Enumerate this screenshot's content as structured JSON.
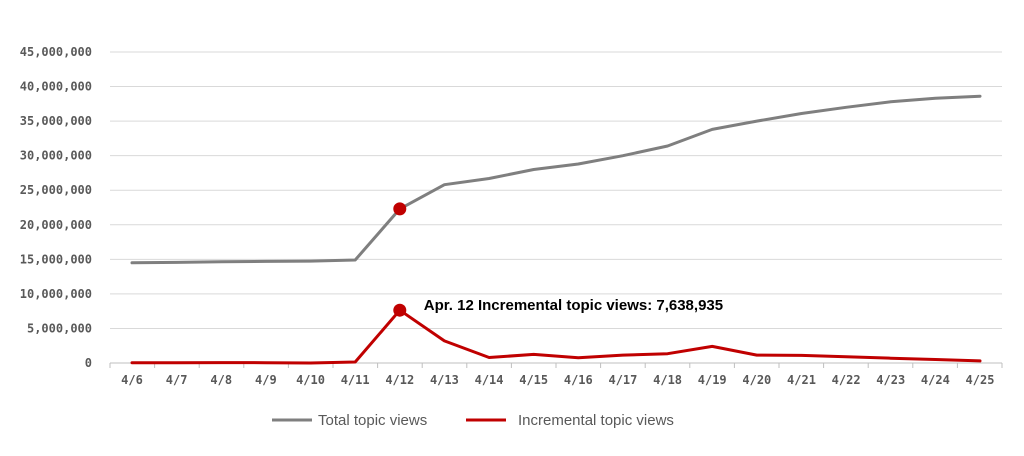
{
  "chart_data": {
    "type": "line",
    "categories": [
      "4/6",
      "4/7",
      "4/8",
      "4/9",
      "4/10",
      "4/11",
      "4/12",
      "4/13",
      "4/14",
      "4/15",
      "4/16",
      "4/17",
      "4/18",
      "4/19",
      "4/20",
      "4/21",
      "4/22",
      "4/23",
      "4/24",
      "4/25"
    ],
    "y_tick_labels": [
      "0",
      "5,000,000",
      "10,000,000",
      "15,000,000",
      "20,000,000",
      "25,000,000",
      "30,000,000",
      "35,000,000",
      "40,000,000",
      "45,000,000"
    ],
    "y_tick_values": [
      0,
      5000000,
      10000000,
      15000000,
      20000000,
      25000000,
      30000000,
      35000000,
      40000000,
      45000000
    ],
    "ylim": [
      0,
      45000000
    ],
    "grid": true,
    "legend_position": "bottom",
    "series": [
      {
        "name": "Total topic views",
        "color": "#7f7f7f",
        "values": [
          14500000,
          14550000,
          14650000,
          14700000,
          14750000,
          14900000,
          22300000,
          25800000,
          26700000,
          28000000,
          28800000,
          30000000,
          31400000,
          33800000,
          35000000,
          36100000,
          37000000,
          37800000,
          38300000,
          38600000
        ]
      },
      {
        "name": "Incremental topic views",
        "color": "#c00000",
        "values": [
          50000,
          50000,
          60000,
          50000,
          0,
          150000,
          7638935,
          3200000,
          800000,
          1250000,
          750000,
          1150000,
          1350000,
          2400000,
          1150000,
          1100000,
          900000,
          700000,
          500000,
          300000
        ]
      }
    ],
    "markers": [
      {
        "series": 0,
        "index": 6,
        "color": "#c00000"
      },
      {
        "series": 1,
        "index": 6,
        "color": "#c00000"
      }
    ],
    "annotation": {
      "text": "Apr. 12 Incremental topic views: 7,638,935",
      "series": 1,
      "index": 6
    }
  }
}
